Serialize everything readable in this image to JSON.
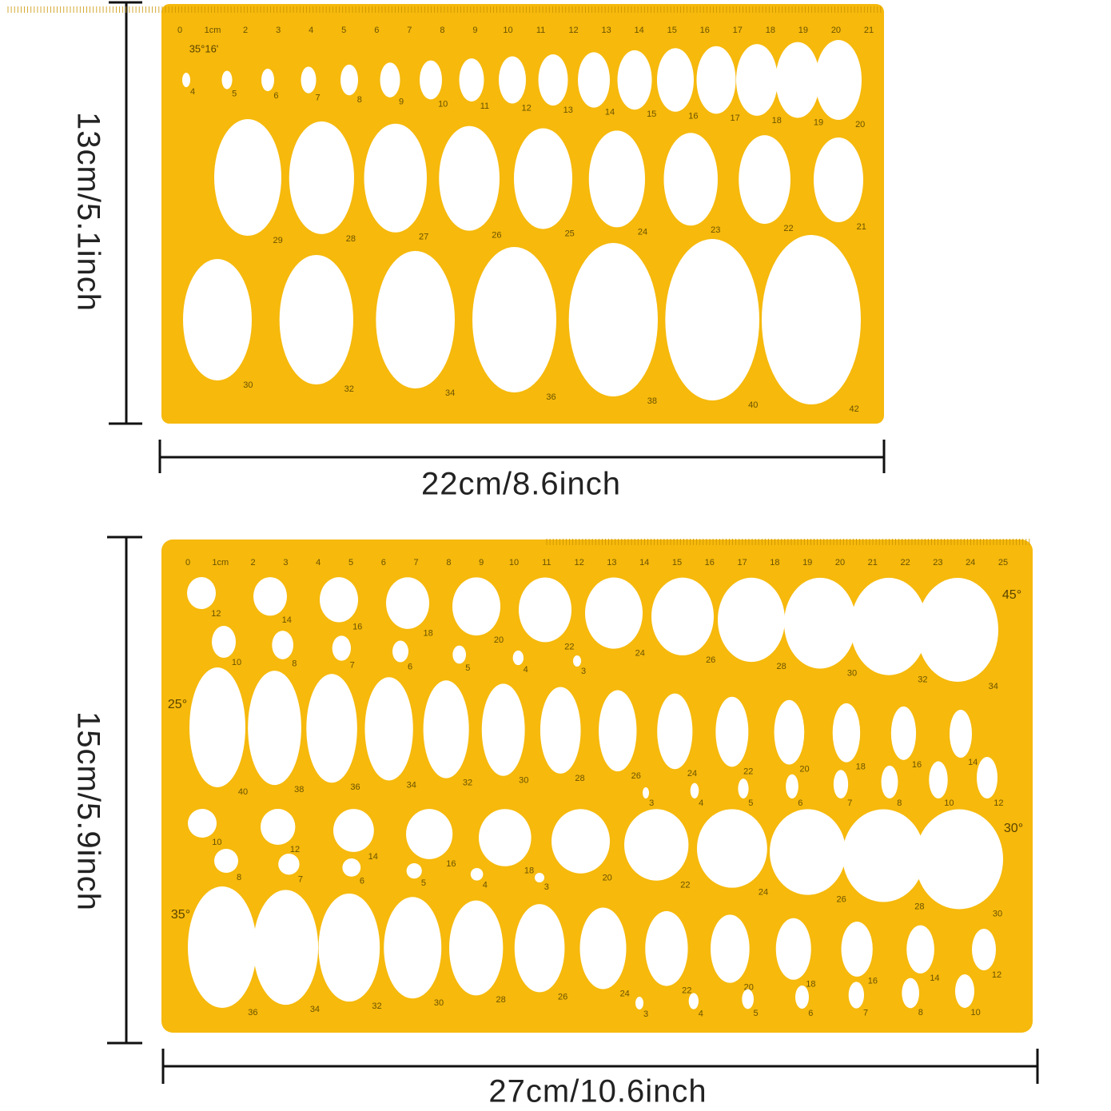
{
  "templates": [
    {
      "height_label": "13cm/5.1inch",
      "width_label": "22cm/8.6inch",
      "ruler": [
        "0",
        "1cm",
        "2",
        "3",
        "4",
        "5",
        "6",
        "7",
        "8",
        "9",
        "10",
        "11",
        "12",
        "13",
        "14",
        "15",
        "16",
        "17",
        "18",
        "19",
        "20",
        "21"
      ],
      "angles": [
        "35°16'"
      ],
      "rows": [
        {
          "labels": [
            "4",
            "5",
            "6",
            "7",
            "8",
            "9",
            "10",
            "11",
            "12",
            "13",
            "14",
            "15",
            "16",
            "17",
            "18",
            "19",
            "20"
          ]
        },
        {
          "labels": [
            "29",
            "28",
            "27",
            "26",
            "25",
            "24",
            "23",
            "22",
            "21"
          ]
        },
        {
          "labels": [
            "30",
            "32",
            "34",
            "36",
            "38",
            "40",
            "42"
          ]
        }
      ]
    },
    {
      "height_label": "15cm/5.9inch",
      "width_label": "27cm/10.6inch",
      "ruler": [
        "0",
        "1cm",
        "2",
        "3",
        "4",
        "5",
        "6",
        "7",
        "8",
        "9",
        "10",
        "11",
        "12",
        "13",
        "14",
        "15",
        "16",
        "17",
        "18",
        "19",
        "20",
        "21",
        "22",
        "23",
        "24",
        "25"
      ],
      "angles": [
        "45°",
        "25°",
        "30°",
        "35°"
      ],
      "rows": [
        {
          "labels": [
            "12",
            "14",
            "16",
            "18",
            "20",
            "22",
            "24",
            "26",
            "28",
            "30",
            "32",
            "34"
          ]
        },
        {
          "labels": [
            "10",
            "8",
            "7",
            "6",
            "5",
            "4",
            "3"
          ]
        },
        {
          "labels": [
            "40",
            "38",
            "36",
            "34",
            "32",
            "30",
            "28",
            "26",
            "24",
            "22",
            "20",
            "18",
            "16",
            "14"
          ]
        },
        {
          "labels": [
            "3",
            "4",
            "5",
            "6",
            "7",
            "8",
            "10",
            "12"
          ]
        },
        {
          "labels": [
            "10",
            "12",
            "14",
            "16",
            "18",
            "20",
            "22",
            "24",
            "26",
            "28",
            "30"
          ]
        },
        {
          "labels": [
            "8",
            "7",
            "6",
            "5",
            "4",
            "3"
          ]
        },
        {
          "labels": [
            "36",
            "34",
            "32",
            "30",
            "28",
            "26",
            "24",
            "22",
            "20",
            "18",
            "16",
            "14",
            "12"
          ]
        },
        {
          "labels": [
            "3",
            "4",
            "5",
            "6",
            "7",
            "8",
            "10"
          ]
        }
      ]
    }
  ]
}
